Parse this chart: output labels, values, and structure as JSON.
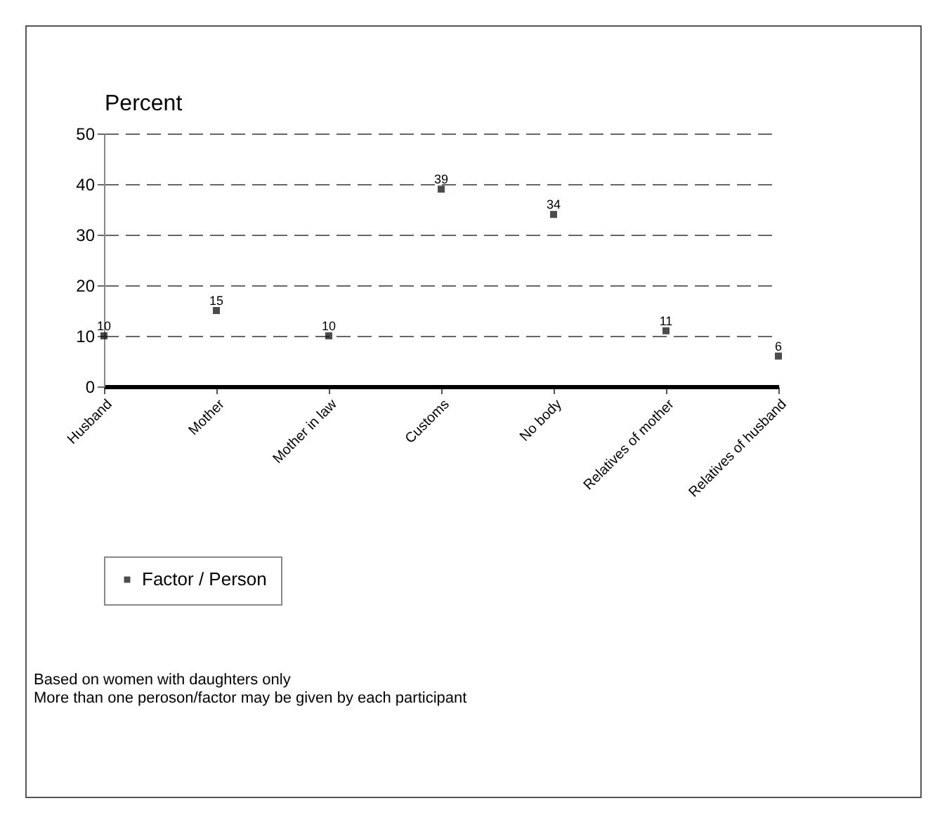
{
  "chart_data": {
    "type": "scatter",
    "ylabel": "Percent",
    "categories": [
      "Husband",
      "Mother",
      "Mother in law",
      "Customs",
      "No body",
      "Relatives of mother",
      "Relatives of husband"
    ],
    "series": [
      {
        "name": "Factor / Person",
        "color": "#000000",
        "values": [
          10,
          15,
          10,
          39,
          34,
          11,
          6
        ]
      }
    ],
    "ylim": [
      0,
      50
    ],
    "yticks": [
      0,
      10,
      20,
      30,
      40,
      50
    ],
    "grid": "y",
    "legend": "bottom",
    "marker": "square",
    "data_labels": true,
    "annotations": [
      "Based on women with daughters only",
      "More than one peroson/factor may be given by each participant"
    ]
  }
}
